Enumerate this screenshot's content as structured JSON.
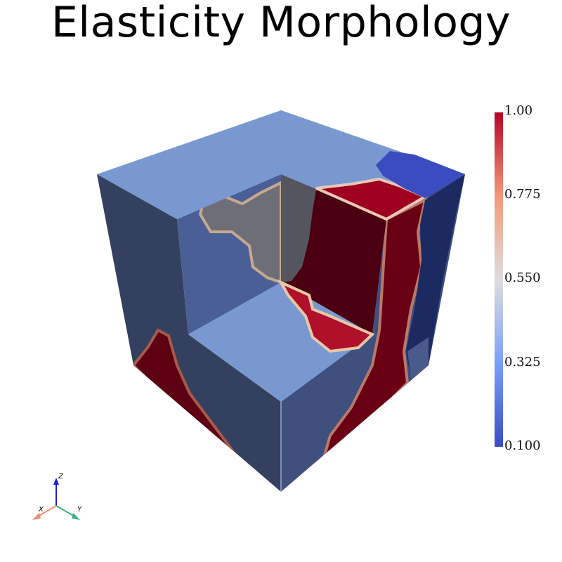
{
  "title": "Elasticity Morphology",
  "colorbar": {
    "colormap": "coolwarm",
    "min_color": "#3b4cc0",
    "max_color": "#b40426",
    "ticks": [
      "1.00",
      "0.775",
      "0.550",
      "0.325",
      "0.100"
    ]
  },
  "orientation_axes": {
    "x_label": "X",
    "y_label": "Y",
    "z_label": "Z",
    "x_color": "#f08c6c",
    "y_color": "#3fb37f",
    "z_color": "#1f1fd6"
  },
  "colors": {
    "low_phase": "#7a98d0",
    "high_phase": "#a00020",
    "interface": "#d9b8a0"
  }
}
